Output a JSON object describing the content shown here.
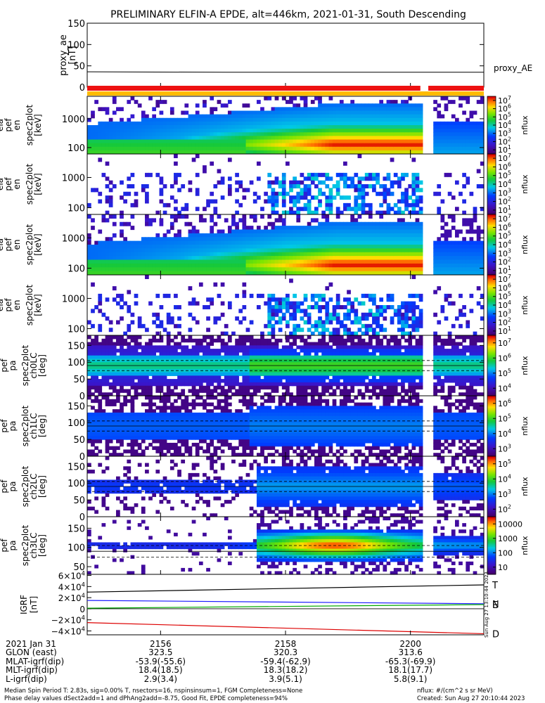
{
  "title": "PRELIMINARY ELFIN-A EPDE, alt=446km, 2021-01-31, South Descending",
  "chart_data": [
    {
      "type": "line",
      "name": "proxy_ae",
      "ylabel": [
        "proxy_ae",
        "[nT]"
      ],
      "yticks": [
        "150",
        "100",
        "50",
        "0"
      ],
      "ylim": [
        0,
        150
      ],
      "series": [
        {
          "name": "proxy_AE",
          "x": [
            0,
            0.35,
            0.7,
            1.0
          ],
          "values": [
            36,
            35,
            35,
            35
          ],
          "color": "#000000"
        }
      ],
      "legend": "proxy_AE"
    },
    {
      "type": "heatmap",
      "name": "ela_pef_en_spec2plot",
      "ylabel": [
        "ela",
        "pef",
        "en",
        "spec2plot",
        "[keV]"
      ],
      "yticks": [
        "1000",
        "100"
      ],
      "ylim": [
        60,
        6000
      ],
      "log": true,
      "zlabel": "nflux",
      "zticks": [
        "10^7",
        "10^6",
        "10^5",
        "10^4",
        "10^3",
        "10^2",
        "10^1"
      ]
    },
    {
      "type": "heatmap",
      "name": "ela_pef_en_spec2plot",
      "ylabel": [
        "ela",
        "pef",
        "en",
        "spec2plot",
        "[keV]"
      ],
      "yticks": [
        "1000",
        "100"
      ],
      "ylim": [
        60,
        6000
      ],
      "log": true,
      "zlabel": "nflux",
      "zticks": [
        "10^7",
        "10^6",
        "10^5",
        "10^4",
        "10^3",
        "10^2",
        "10^1"
      ]
    },
    {
      "type": "heatmap",
      "name": "ela_pef_en_spec2plot",
      "ylabel": [
        "ela",
        "pef",
        "en",
        "spec2plot",
        "[keV]"
      ],
      "yticks": [
        "1000",
        "100"
      ],
      "ylim": [
        60,
        6000
      ],
      "log": true,
      "zlabel": "nflux",
      "zticks": [
        "10^7",
        "10^6",
        "10^5",
        "10^4",
        "10^3",
        "10^2",
        "10^1"
      ]
    },
    {
      "type": "heatmap",
      "name": "ela_pef_en_spec2plot",
      "ylabel": [
        "ela",
        "pef",
        "en",
        "spec2plot",
        "[keV]"
      ],
      "yticks": [
        "1000",
        "100"
      ],
      "ylim": [
        60,
        6000
      ],
      "log": true,
      "zlabel": "nflux",
      "zticks": [
        "10^7",
        "10^6",
        "10^5",
        "10^4",
        "10^3",
        "10^2",
        "10^1"
      ]
    },
    {
      "type": "heatmap",
      "name": "ela_pef_pa_spec2plot_ch0LC",
      "ylabel": [
        "ela",
        "pef",
        "pa",
        "spec2plot",
        "ch0LC",
        "[deg]"
      ],
      "yticks": [
        "150",
        "100",
        "50",
        "0"
      ],
      "ylim": [
        0,
        180
      ],
      "zlabel": "nflux",
      "zticks": [
        "10^7",
        "10^6",
        "10^5",
        "10^4"
      ]
    },
    {
      "type": "heatmap",
      "name": "ela_pef_pa_spec2plot_ch1LC",
      "ylabel": [
        "ela",
        "pef",
        "pa",
        "spec2plot",
        "ch1LC",
        "[deg]"
      ],
      "yticks": [
        "150",
        "100",
        "50",
        "0"
      ],
      "ylim": [
        0,
        180
      ],
      "zlabel": "nflux",
      "zticks": [
        "10^6",
        "10^5",
        "10^4",
        "10^3"
      ]
    },
    {
      "type": "heatmap",
      "name": "ela_pef_pa_spec2plot_ch2LC",
      "ylabel": [
        "ela",
        "pef",
        "pa",
        "spec2plot",
        "ch2LC",
        "[deg]"
      ],
      "yticks": [
        "150",
        "100",
        "50",
        "0"
      ],
      "ylim": [
        0,
        180
      ],
      "zlabel": "nflux",
      "zticks": [
        "10^5",
        "10^4",
        "10^3",
        "10^2"
      ]
    },
    {
      "type": "heatmap",
      "name": "ela_pef_pa_spec2plot_ch3LC",
      "ylabel": [
        "ela",
        "pef",
        "pa",
        "spec2plot",
        "ch3LC",
        "[deg]"
      ],
      "yticks": [
        "150",
        "100",
        "50"
      ],
      "ylim": [
        30,
        180
      ],
      "zlabel": "nflux",
      "zticks": [
        "10000",
        "1000",
        "100",
        "10"
      ]
    },
    {
      "type": "line",
      "name": "IGRF",
      "ylabel": [
        "IGRF",
        "[nT]"
      ],
      "yticks": [
        "6×10^4",
        "4×10^4",
        "2×10^4",
        "0",
        "−2×10^4",
        "−4×10^4"
      ],
      "ylim": [
        -47000,
        62000
      ],
      "series": [
        {
          "name": "T",
          "x": [
            0,
            1
          ],
          "values": [
            30000,
            43000
          ],
          "color": "#000000"
        },
        {
          "name": "N",
          "x": [
            0,
            1
          ],
          "values": [
            15000,
            9000
          ],
          "color": "#1a1aff"
        },
        {
          "name": "E",
          "x": [
            0,
            1
          ],
          "values": [
            1000,
            7500
          ],
          "color": "#00aa00"
        },
        {
          "name": "D",
          "x": [
            0,
            1
          ],
          "values": [
            -25000,
            -45000
          ],
          "color": "#dd0000"
        }
      ],
      "side_text": "Sun Aug 27 13:10:44 2023"
    }
  ],
  "xaxis": {
    "row_label": "2021 Jan 31",
    "ticks": [
      {
        "label": "2156",
        "pos": 0.185
      },
      {
        "label": "2158",
        "pos": 0.5
      },
      {
        "label": "2200",
        "pos": 0.815
      }
    ]
  },
  "ephemeris": [
    {
      "label": "GLON (east)",
      "values": [
        "323.5",
        "320.3",
        "313.6"
      ]
    },
    {
      "label": "MLAT-igrf(dip)",
      "values": [
        "-53.9(-55.6)",
        "-59.4(-62.9)",
        "-65.3(-69.9)"
      ]
    },
    {
      "label": "MLT-igrf(dip)",
      "values": [
        "18.4(18.5)",
        "18.3(18.2)",
        "18.1(17.7)"
      ]
    },
    {
      "label": "L-igrf(dip)",
      "values": [
        "2.9(3.4)",
        "3.9(5.1)",
        "5.8(9.1)"
      ]
    }
  ],
  "footer": {
    "line1": "Median Spin Period T: 2.83s, sig=0.00% T, nsectors=16, nspinsinsum=1, FGM Completeness=None",
    "line2": "Phase delay values dSect2add=1 and dPhAng2add=-8.75, Good Fit, EPDE completeness=94%",
    "units": "nflux: #/(cm^2 s sr MeV)",
    "created": "Created: Sun Aug 27 20:10:44 2023"
  }
}
